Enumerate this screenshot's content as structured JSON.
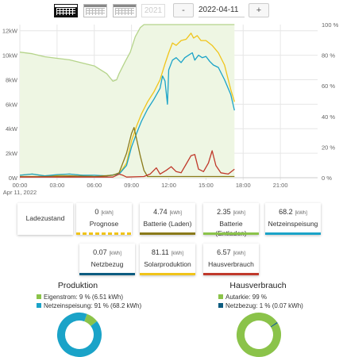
{
  "toolbar": {
    "year_label": "2021",
    "prev_label": "-",
    "next_label": "+",
    "date_value": "2022-04-11"
  },
  "chart_data": {
    "type": "line",
    "x_tick_labels": [
      "00:00",
      "03:00",
      "06:00",
      "09:00",
      "12:00",
      "15:00",
      "18:00",
      "21:00"
    ],
    "x_sub_label": "Apr 11, 2022",
    "y_left_tick_labels": [
      "0W",
      "2kW",
      "4kW",
      "6kW",
      "8kW",
      "10kW",
      "12kW"
    ],
    "y_right_tick_labels": [
      "0 %",
      "20 %",
      "40 %",
      "60 %",
      "80 %",
      "100 %"
    ],
    "x_range_hours": [
      0,
      24
    ],
    "y_left_range_kw": [
      0,
      12.5
    ],
    "y_right_range_pct": [
      0,
      100
    ],
    "grid": true,
    "colors": {
      "soc": "#b5d48a",
      "solar": "#f0c419",
      "consumption": "#1aa3c8",
      "battery_charge": "#8a7a1a",
      "feed": "#c0392b"
    },
    "series": [
      {
        "color_key": "soc",
        "axis": "right",
        "area": true,
        "points": [
          [
            0,
            82
          ],
          [
            1,
            81
          ],
          [
            2,
            79
          ],
          [
            3,
            78
          ],
          [
            4,
            77
          ],
          [
            5,
            75
          ],
          [
            6,
            73
          ],
          [
            7,
            68
          ],
          [
            7.5,
            63
          ],
          [
            7.8,
            64
          ],
          [
            8,
            68
          ],
          [
            8.5,
            76
          ],
          [
            8.9,
            82
          ],
          [
            9.3,
            92
          ],
          [
            9.7,
            98
          ],
          [
            10,
            100
          ],
          [
            17.3,
            100
          ]
        ]
      },
      {
        "color_key": "solar",
        "axis": "left",
        "points": [
          [
            0,
            0.2
          ],
          [
            1,
            0.3
          ],
          [
            2,
            0.15
          ],
          [
            3,
            0.2
          ],
          [
            4,
            0.3
          ],
          [
            5,
            0.2
          ],
          [
            6,
            0.1
          ],
          [
            7,
            0.15
          ],
          [
            8,
            0.3
          ],
          [
            8.6,
            1.2
          ],
          [
            9,
            3.0
          ],
          [
            9.4,
            4.2
          ],
          [
            9.8,
            5.2
          ],
          [
            10.3,
            6.2
          ],
          [
            10.8,
            7.0
          ],
          [
            11.3,
            8.0
          ],
          [
            11.7,
            9.3
          ],
          [
            12,
            10.2
          ],
          [
            12.3,
            11.0
          ],
          [
            12.6,
            10.8
          ],
          [
            13,
            11.2
          ],
          [
            13.4,
            11.3
          ],
          [
            13.8,
            11.8
          ],
          [
            14.0,
            11.4
          ],
          [
            14.3,
            11.6
          ],
          [
            14.6,
            11.2
          ],
          [
            15,
            11.2
          ],
          [
            15.5,
            10.8
          ],
          [
            16,
            10.2
          ],
          [
            16.5,
            9.2
          ],
          [
            17,
            7.2
          ],
          [
            17.3,
            6.2
          ]
        ]
      },
      {
        "color_key": "consumption",
        "axis": "left",
        "points": [
          [
            0,
            0.2
          ],
          [
            1,
            0.3
          ],
          [
            2,
            0.15
          ],
          [
            3,
            0.25
          ],
          [
            4,
            0.3
          ],
          [
            5,
            0.2
          ],
          [
            6,
            0.2
          ],
          [
            7,
            0.15
          ],
          [
            8,
            0.3
          ],
          [
            8.6,
            1.0
          ],
          [
            9,
            2.5
          ],
          [
            9.4,
            3.6
          ],
          [
            9.8,
            4.6
          ],
          [
            10.3,
            5.6
          ],
          [
            10.8,
            6.4
          ],
          [
            11.3,
            7.3
          ],
          [
            11.5,
            8.3
          ],
          [
            11.7,
            7.9
          ],
          [
            11.9,
            6.0
          ],
          [
            12,
            8.8
          ],
          [
            12.3,
            9.6
          ],
          [
            12.6,
            9.8
          ],
          [
            13,
            9.4
          ],
          [
            13.3,
            9.8
          ],
          [
            13.6,
            10.0
          ],
          [
            13.9,
            10.2
          ],
          [
            14.1,
            9.6
          ],
          [
            14.4,
            10.0
          ],
          [
            14.7,
            9.8
          ],
          [
            15,
            9.9
          ],
          [
            15.3,
            9.5
          ],
          [
            15.6,
            9.2
          ],
          [
            16,
            9.0
          ],
          [
            16.5,
            8.0
          ],
          [
            17,
            6.8
          ],
          [
            17.3,
            5.5
          ]
        ]
      },
      {
        "color_key": "battery_charge",
        "axis": "left",
        "points": [
          [
            0,
            0.1
          ],
          [
            2,
            0.1
          ],
          [
            4,
            0.15
          ],
          [
            6,
            0.1
          ],
          [
            7.5,
            0.2
          ],
          [
            8,
            0.4
          ],
          [
            8.6,
            2.0
          ],
          [
            9.0,
            3.6
          ],
          [
            9.2,
            4.1
          ],
          [
            9.4,
            3.2
          ],
          [
            9.7,
            1.8
          ],
          [
            10,
            0.6
          ],
          [
            10.3,
            0.1
          ],
          [
            17.3,
            0.1
          ]
        ]
      },
      {
        "color_key": "feed",
        "axis": "left",
        "points": [
          [
            0,
            0.05
          ],
          [
            7.5,
            0.05
          ],
          [
            8,
            0.3
          ],
          [
            8.3,
            0.2
          ],
          [
            8.6,
            0.05
          ],
          [
            10,
            0.1
          ],
          [
            10.5,
            0.3
          ],
          [
            11,
            0.8
          ],
          [
            11.3,
            0.3
          ],
          [
            11.8,
            0.6
          ],
          [
            12.2,
            0.9
          ],
          [
            12.6,
            0.5
          ],
          [
            13,
            0.4
          ],
          [
            13.4,
            1.1
          ],
          [
            13.8,
            1.8
          ],
          [
            14.1,
            1.9
          ],
          [
            14.4,
            0.7
          ],
          [
            14.8,
            0.5
          ],
          [
            15.2,
            1.2
          ],
          [
            15.5,
            2.2
          ],
          [
            15.8,
            1.0
          ],
          [
            16.2,
            0.4
          ],
          [
            16.8,
            0.3
          ],
          [
            17.3,
            0.7
          ]
        ]
      }
    ]
  },
  "cards": [
    {
      "label": "Ladezustand",
      "value": "",
      "unit": "",
      "stripe": ""
    },
    {
      "label": "Prognose",
      "value": "0",
      "unit": "[kWh]",
      "stripe": "dashed"
    },
    {
      "label": "Batterie (Laden)",
      "value": "4.74",
      "unit": "[kWh]",
      "stripe": "#8a7a1a"
    },
    {
      "label": "Batterie (Entladen)",
      "value": "2.35",
      "unit": "[kWh]",
      "stripe": "#8bc34a"
    },
    {
      "label": "Netzeinspeisung",
      "value": "68.2",
      "unit": "[kWh]",
      "stripe": "#1aa3c8"
    },
    {
      "label": "Netzbezug",
      "value": "0.07",
      "unit": "[kWh]",
      "stripe": "#0d5c80"
    },
    {
      "label": "Solarproduktion",
      "value": "81.11",
      "unit": "[kWh]",
      "stripe": "#f0c419"
    },
    {
      "label": "Hausverbrauch",
      "value": "6.57",
      "unit": "[kWh]",
      "stripe": "#c0392b"
    }
  ],
  "production": {
    "title": "Produktion",
    "legend": [
      {
        "text": "Eigenstrom: 9 % (6.51 kWh)",
        "color": "#8bc34a"
      },
      {
        "text": "Netzeinspeisung: 91 % (68.2 kWh)",
        "color": "#1aa3c8"
      }
    ],
    "slices_pct": [
      9,
      91
    ]
  },
  "consumption": {
    "title": "Hausverbrauch",
    "legend": [
      {
        "text": "Autarkie: 99 %",
        "color": "#8bc34a"
      },
      {
        "text": "Netzbezug: 1 % (0.07 kWh)",
        "color": "#0d5c80"
      }
    ],
    "slices_pct": [
      99,
      1
    ]
  }
}
